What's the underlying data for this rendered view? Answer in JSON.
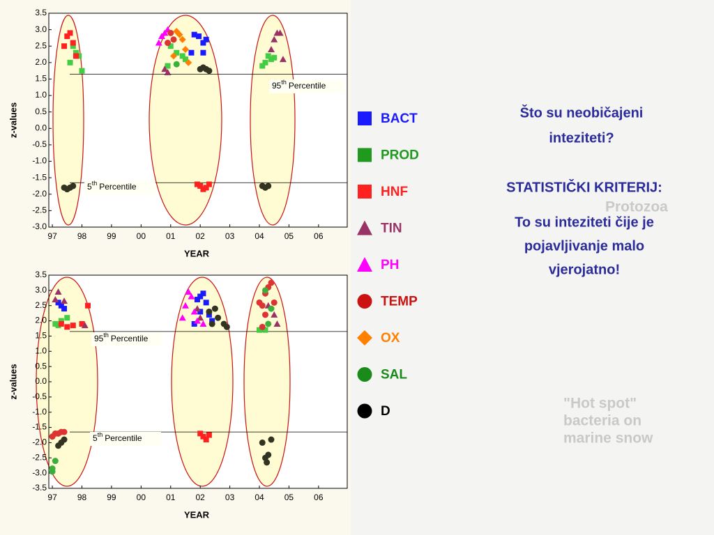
{
  "chart_data": [
    {
      "type": "scatter",
      "ylabel": "z-values",
      "xlabel": "YEAR",
      "xlim": [
        1996.88,
        2006.97
      ],
      "xticks": [
        {
          "value": 1997,
          "label": "97"
        },
        {
          "value": 1998,
          "label": "98"
        },
        {
          "value": 1999,
          "label": "99"
        },
        {
          "value": 2000,
          "label": "00"
        },
        {
          "value": 2001,
          "label": "01"
        },
        {
          "value": 2002,
          "label": "02"
        },
        {
          "value": 2003,
          "label": "03"
        },
        {
          "value": 2004,
          "label": "04"
        },
        {
          "value": 2005,
          "label": "05"
        },
        {
          "value": 2006,
          "label": "06"
        }
      ],
      "ylim": [
        -3,
        3.5
      ],
      "yticks": [
        3.5,
        {
          "value": 3,
          "label": "3.0"
        },
        2.5,
        {
          "value": 2,
          "label": "2.0"
        },
        1.5,
        {
          "value": 1,
          "label": "1.0"
        },
        0.5,
        {
          "value": 0,
          "label": "0.0"
        },
        -0.5,
        {
          "value": -1,
          "label": "-1.0"
        },
        -1.5,
        {
          "value": -2,
          "label": "-2.0"
        },
        -2.5,
        {
          "value": -3,
          "label": "-3.0"
        }
      ],
      "annotations": [
        {
          "y": 1.65,
          "label": [
            "95",
            "th",
            "Percentile"
          ]
        },
        {
          "y": -1.65,
          "label": [
            "5",
            "th",
            "Percentile"
          ]
        }
      ],
      "series": [
        {
          "name": "BACT",
          "color": "#1a1aff",
          "marker": "square",
          "x": [
            2001.8,
            2001.95,
            2002.1,
            2001.7,
            2002.1,
            2002.2
          ],
          "values": [
            2.85,
            2.8,
            2.6,
            2.3,
            2.3,
            2.7
          ]
        },
        {
          "name": "PROD",
          "color": "#1f9a1f",
          "marker": "square",
          "x": [
            1997.7,
            1997.8,
            1997.9,
            1998.0,
            1997.6,
            2001.0,
            2001.2,
            2001.4,
            2001.5,
            2000.9,
            2004.3,
            2004.4,
            2004.2,
            2004.1,
            2004.5
          ],
          "values": [
            2.5,
            2.3,
            2.2,
            1.75,
            2.0,
            2.5,
            2.3,
            2.2,
            2.1,
            1.9,
            2.2,
            2.1,
            2.0,
            1.9,
            2.15
          ]
        },
        {
          "name": "HNF",
          "color": "#ff2020",
          "marker": "square",
          "x": [
            1997.5,
            1997.6,
            1997.7,
            1997.4,
            1997.8,
            2002.0,
            2002.1,
            2002.2,
            2002.3,
            2001.9
          ],
          "values": [
            2.8,
            2.9,
            2.6,
            2.5,
            2.2,
            -1.75,
            -1.85,
            -1.8,
            -1.7,
            -1.7
          ]
        },
        {
          "name": "TIN",
          "color": "#993366",
          "marker": "triangle",
          "x": [
            2000.8,
            2000.9,
            2004.6,
            2004.7,
            2004.5,
            2004.8,
            2004.4
          ],
          "values": [
            1.8,
            1.7,
            2.9,
            2.9,
            2.7,
            2.1,
            2.4
          ]
        },
        {
          "name": "PH",
          "color": "#ff00ff",
          "marker": "triangle",
          "x": [
            2000.6,
            2000.7,
            2000.8,
            2000.9
          ],
          "values": [
            2.6,
            2.8,
            2.9,
            3.0
          ]
        },
        {
          "name": "TEMP",
          "color": "#cc1111",
          "marker": "circle",
          "x": [
            2001.0,
            2001.1,
            2000.9
          ],
          "values": [
            2.9,
            2.7,
            2.6
          ]
        },
        {
          "name": "OX",
          "color": "#ff8000",
          "marker": "diamond",
          "x": [
            2001.2,
            2001.3,
            2001.4,
            2001.5,
            2001.6,
            2001.1
          ],
          "values": [
            2.95,
            2.85,
            2.7,
            2.4,
            2.0,
            2.2
          ]
        },
        {
          "name": "SAL",
          "color": "#1a8a1a",
          "marker": "circle",
          "x": [
            2001.2
          ],
          "values": [
            1.95
          ]
        },
        {
          "name": "D",
          "color": "#000000",
          "marker": "circle",
          "x": [
            2002.0,
            2002.1,
            2002.2,
            2002.3,
            1997.4,
            1997.5,
            1997.6,
            1997.7,
            2004.1,
            2004.2,
            2004.3
          ],
          "values": [
            1.8,
            1.85,
            1.8,
            1.75,
            -1.8,
            -1.85,
            -1.8,
            -1.75,
            -1.75,
            -1.8,
            -1.75
          ]
        }
      ]
    },
    {
      "type": "scatter",
      "ylabel": "z-values",
      "xlabel": "YEAR",
      "xlim": [
        1996.88,
        2006.97
      ],
      "xticks": [
        {
          "value": 1997,
          "label": "97"
        },
        {
          "value": 1998,
          "label": "98"
        },
        {
          "value": 1999,
          "label": "99"
        },
        {
          "value": 2000,
          "label": "00"
        },
        {
          "value": 2001,
          "label": "01"
        },
        {
          "value": 2002,
          "label": "02"
        },
        {
          "value": 2003,
          "label": "03"
        },
        {
          "value": 2004,
          "label": "04"
        },
        {
          "value": 2005,
          "label": "05"
        },
        {
          "value": 2006,
          "label": "06"
        }
      ],
      "ylim": [
        -3.5,
        3.5
      ],
      "yticks": [
        3.5,
        {
          "value": 3,
          "label": "3.0"
        },
        2.5,
        {
          "value": 2,
          "label": "2.0"
        },
        1.5,
        {
          "value": 1,
          "label": "1.0"
        },
        0.5,
        {
          "value": 0,
          "label": "0.0"
        },
        -0.5,
        {
          "value": -1,
          "label": "-1.0"
        },
        -1.5,
        {
          "value": -2,
          "label": "-2.0"
        },
        -2.5,
        {
          "value": -3,
          "label": "-3.0"
        },
        -3.5
      ],
      "annotations": [
        {
          "y": 1.65,
          "label": [
            "95",
            "th",
            "Percentile"
          ]
        },
        {
          "y": -1.65,
          "label": [
            "5",
            "th",
            "Percentile"
          ]
        }
      ],
      "series": [
        {
          "name": "BACT",
          "color": "#1a1aff",
          "marker": "square",
          "x": [
            1997.3,
            1997.4,
            1997.2,
            2001.9,
            2002.0,
            2002.1,
            2002.2,
            2002.3,
            2002.4,
            2002.0,
            2001.8
          ],
          "values": [
            2.5,
            2.4,
            2.6,
            2.7,
            2.8,
            2.9,
            2.6,
            2.2,
            2.0,
            2.3,
            1.9
          ]
        },
        {
          "name": "PROD",
          "color": "#1f9a1f",
          "marker": "square",
          "x": [
            1997.1,
            1997.2,
            1997.5,
            1997.3,
            2004.0,
            2004.1,
            2004.2
          ],
          "values": [
            1.9,
            1.85,
            2.1,
            2.0,
            1.7,
            1.75,
            1.7
          ]
        },
        {
          "name": "HNF",
          "color": "#ff2020",
          "marker": "square",
          "x": [
            1997.3,
            1997.7,
            1998.0,
            1998.2,
            1997.5,
            2002.0,
            2002.1,
            2002.2,
            2002.3
          ],
          "values": [
            1.9,
            1.85,
            1.9,
            2.5,
            1.8,
            -1.7,
            -1.8,
            -1.9,
            -1.75
          ]
        },
        {
          "name": "TIN",
          "color": "#993366",
          "marker": "triangle",
          "x": [
            1997.1,
            1997.2,
            1997.4,
            1998.1,
            2001.9,
            2002.0,
            2004.3,
            2004.5,
            2004.6
          ],
          "values": [
            2.7,
            2.95,
            2.65,
            1.85,
            2.4,
            2.1,
            2.5,
            2.2,
            1.9
          ]
        },
        {
          "name": "PH",
          "color": "#ff00ff",
          "marker": "triangle",
          "x": [
            2001.6,
            2001.7,
            2001.5,
            2001.8,
            2001.4,
            2001.9,
            2002.1
          ],
          "values": [
            2.95,
            2.8,
            2.5,
            2.3,
            2.1,
            2.0,
            1.9
          ]
        },
        {
          "name": "TEMP",
          "color": "#cc1111",
          "marker": "circle",
          "x": [
            1997.0,
            1997.1,
            1997.2,
            1997.3,
            1997.4,
            2004.0,
            2004.1,
            2004.2,
            2004.3,
            2004.4,
            2004.5,
            2004.2,
            2004.1
          ],
          "values": [
            -1.8,
            -1.7,
            -1.7,
            -1.65,
            -1.65,
            2.6,
            2.5,
            2.9,
            3.1,
            3.25,
            2.6,
            2.2,
            1.8
          ]
        },
        {
          "name": "SAL",
          "color": "#1a8a1a",
          "marker": "circle",
          "x": [
            1997.0,
            1997.1,
            1997.0,
            2004.2,
            2004.4,
            2004.3
          ],
          "values": [
            -2.85,
            -2.6,
            -2.95,
            3.0,
            2.4,
            1.9
          ]
        },
        {
          "name": "D",
          "color": "#000000",
          "marker": "circle",
          "x": [
            1997.3,
            1997.4,
            1997.2,
            2002.3,
            2002.5,
            2002.6,
            2002.4,
            2002.8,
            2002.9,
            2004.1,
            2004.4,
            2004.2,
            2004.3,
            2004.25
          ],
          "values": [
            -2.0,
            -1.9,
            -2.1,
            2.3,
            2.4,
            2.1,
            1.9,
            1.9,
            1.8,
            -2.0,
            -1.9,
            -2.5,
            -2.4,
            -2.65
          ]
        }
      ]
    }
  ],
  "side_text": {
    "question": [
      "Što su neobičajeni",
      "inteziteti?"
    ],
    "criterion": "STATISTIČKI KRITERIJ:",
    "answer": [
      "To su inteziteti čije je",
      "pojavljivanje malo",
      "vjerojatno!"
    ]
  },
  "background_text": {
    "label1": "Protozoa",
    "label2": [
      "\"Hot spot\"",
      "bacteria on",
      "marine snow"
    ]
  }
}
